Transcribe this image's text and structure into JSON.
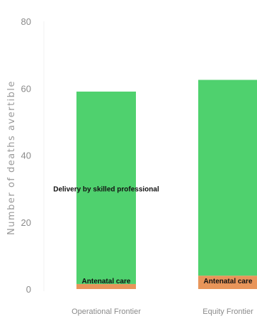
{
  "chart_data": {
    "type": "bar",
    "stacked": true,
    "categories": [
      "Operational Frontier",
      "Equity Frontier"
    ],
    "series": [
      {
        "name": "Antenatal care",
        "values": [
          1.5,
          4
        ],
        "color": "#e8955a"
      },
      {
        "name": "Delivery by skilled professional",
        "values": [
          57.5,
          58.5
        ],
        "color": "#4fd16e"
      }
    ],
    "segment_labels": [
      {
        "category_index": 0,
        "series_index": 0,
        "text": "Antenatal care"
      },
      {
        "category_index": 0,
        "series_index": 1,
        "text": "Delivery by skilled professional"
      },
      {
        "category_index": 1,
        "series_index": 0,
        "text": "Antenatal care"
      }
    ],
    "ylabel": "Number of deaths avertible",
    "ylim": [
      0,
      80
    ],
    "yticks": [
      0,
      20,
      40,
      60,
      80
    ],
    "grid": false
  }
}
